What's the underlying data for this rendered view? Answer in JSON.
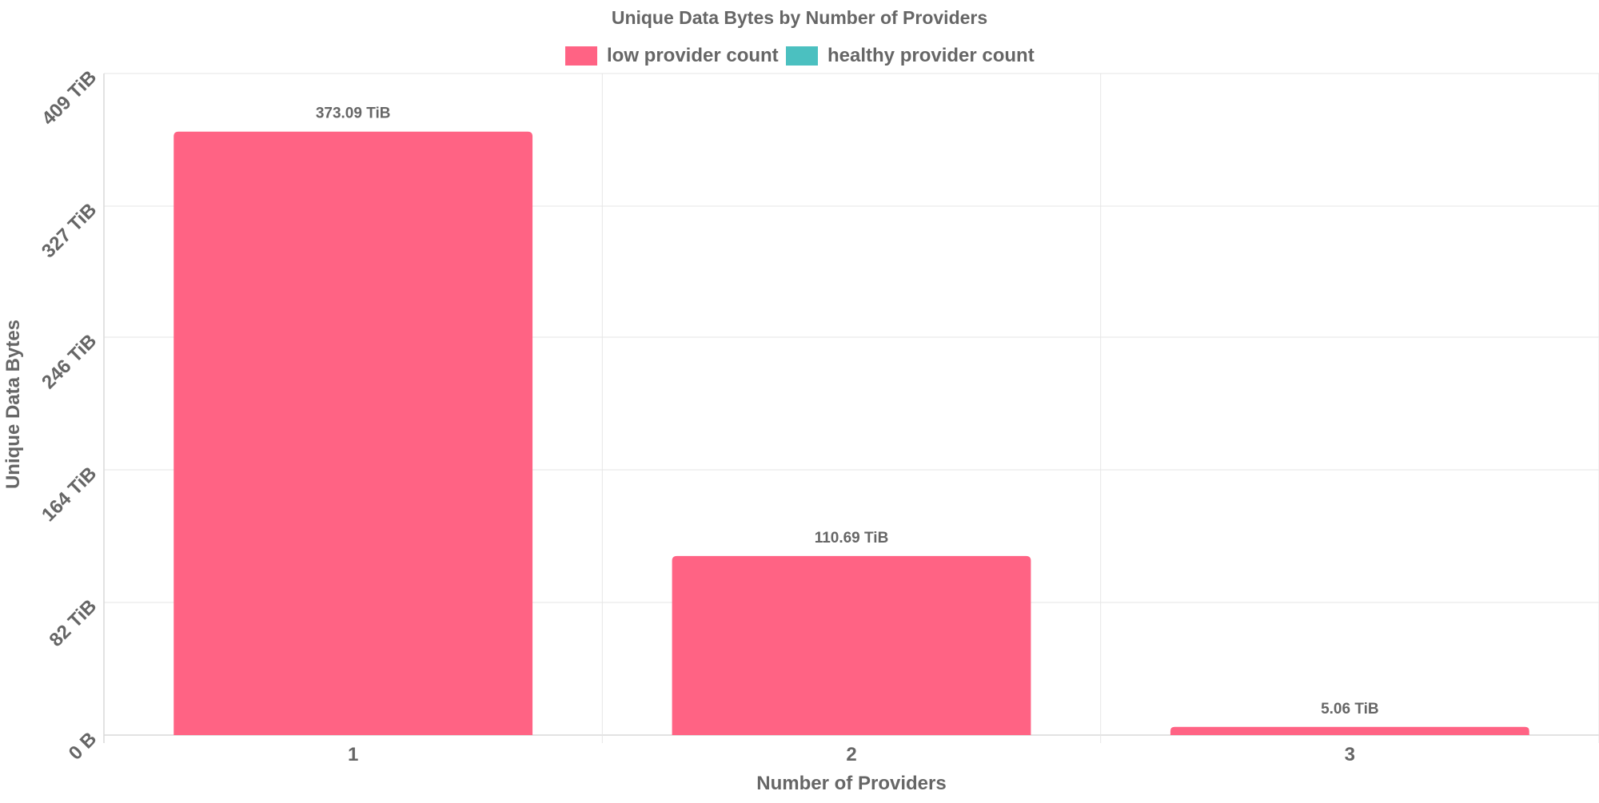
{
  "chart_data": {
    "type": "bar",
    "title": "Unique Data Bytes by Number of Providers",
    "xlabel": "Number of Providers",
    "ylabel": "Unique Data Bytes",
    "categories": [
      "1",
      "2",
      "3"
    ],
    "series": [
      {
        "name": "low provider count",
        "color": "#ff6384",
        "values": [
          373.09,
          110.69,
          5.06
        ],
        "value_labels": [
          "373.09 TiB",
          "110.69 TiB",
          "5.06 TiB"
        ]
      },
      {
        "name": "healthy provider count",
        "color": "#4bc0c0",
        "values": [
          0,
          0,
          0
        ],
        "value_labels": []
      }
    ],
    "unit": "TiB",
    "ylim": [
      0,
      409
    ],
    "yticks": [
      0,
      82,
      164,
      246,
      327,
      409
    ],
    "ytick_labels": [
      "0 B",
      "82 TiB",
      "164 TiB",
      "246 TiB",
      "327 TiB",
      "409 TiB"
    ],
    "grid": true,
    "legend_position": "top-center"
  }
}
